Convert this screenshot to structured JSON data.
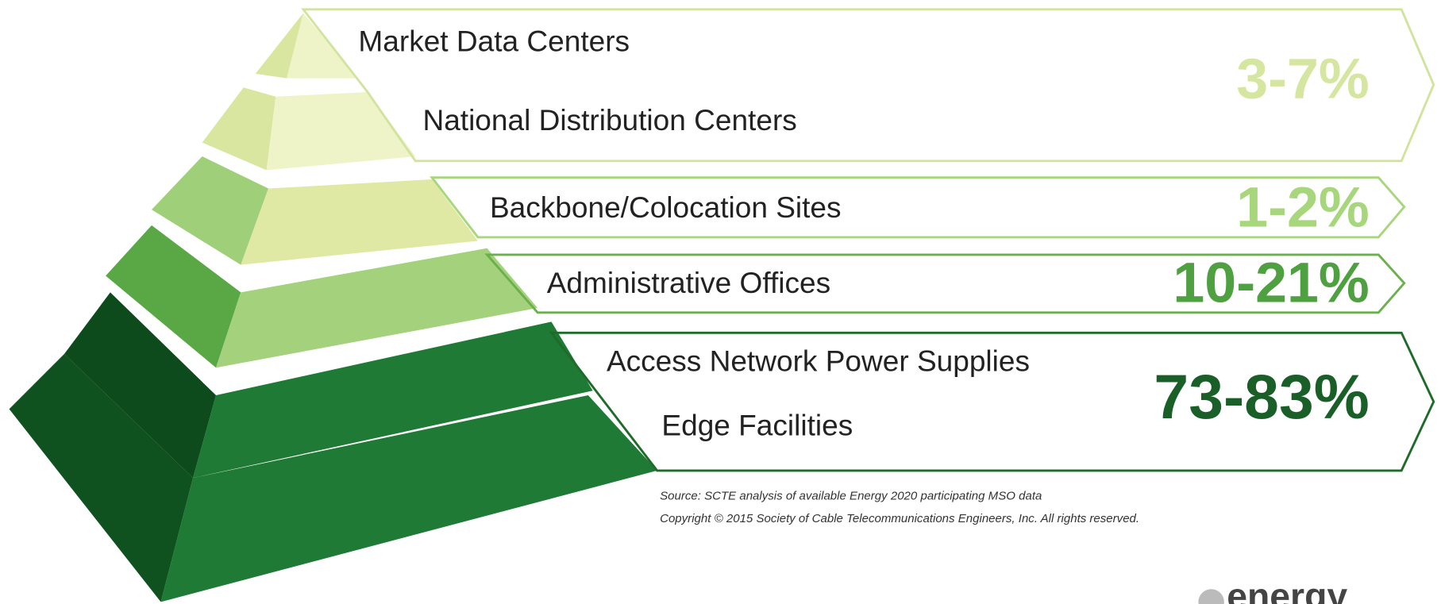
{
  "tiers": [
    {
      "labels": [
        "Market Data Centers",
        "National Distribution Centers"
      ],
      "share": "3-7%"
    },
    {
      "labels": [
        "Backbone/Colocation Sites"
      ],
      "share": "1-2%"
    },
    {
      "labels": [
        "Administrative Offices"
      ],
      "share": "10-21%"
    },
    {
      "labels": [
        "Access Network Power Supplies",
        "Edge Facilities"
      ],
      "share": "73-83%"
    }
  ],
  "source": "Source: SCTE analysis of available Energy 2020 participating MSO data",
  "copyright": "Copyright © 2015 Society of Cable Telecommunications Engineers, Inc. All rights reserved.",
  "logo": "energy"
}
